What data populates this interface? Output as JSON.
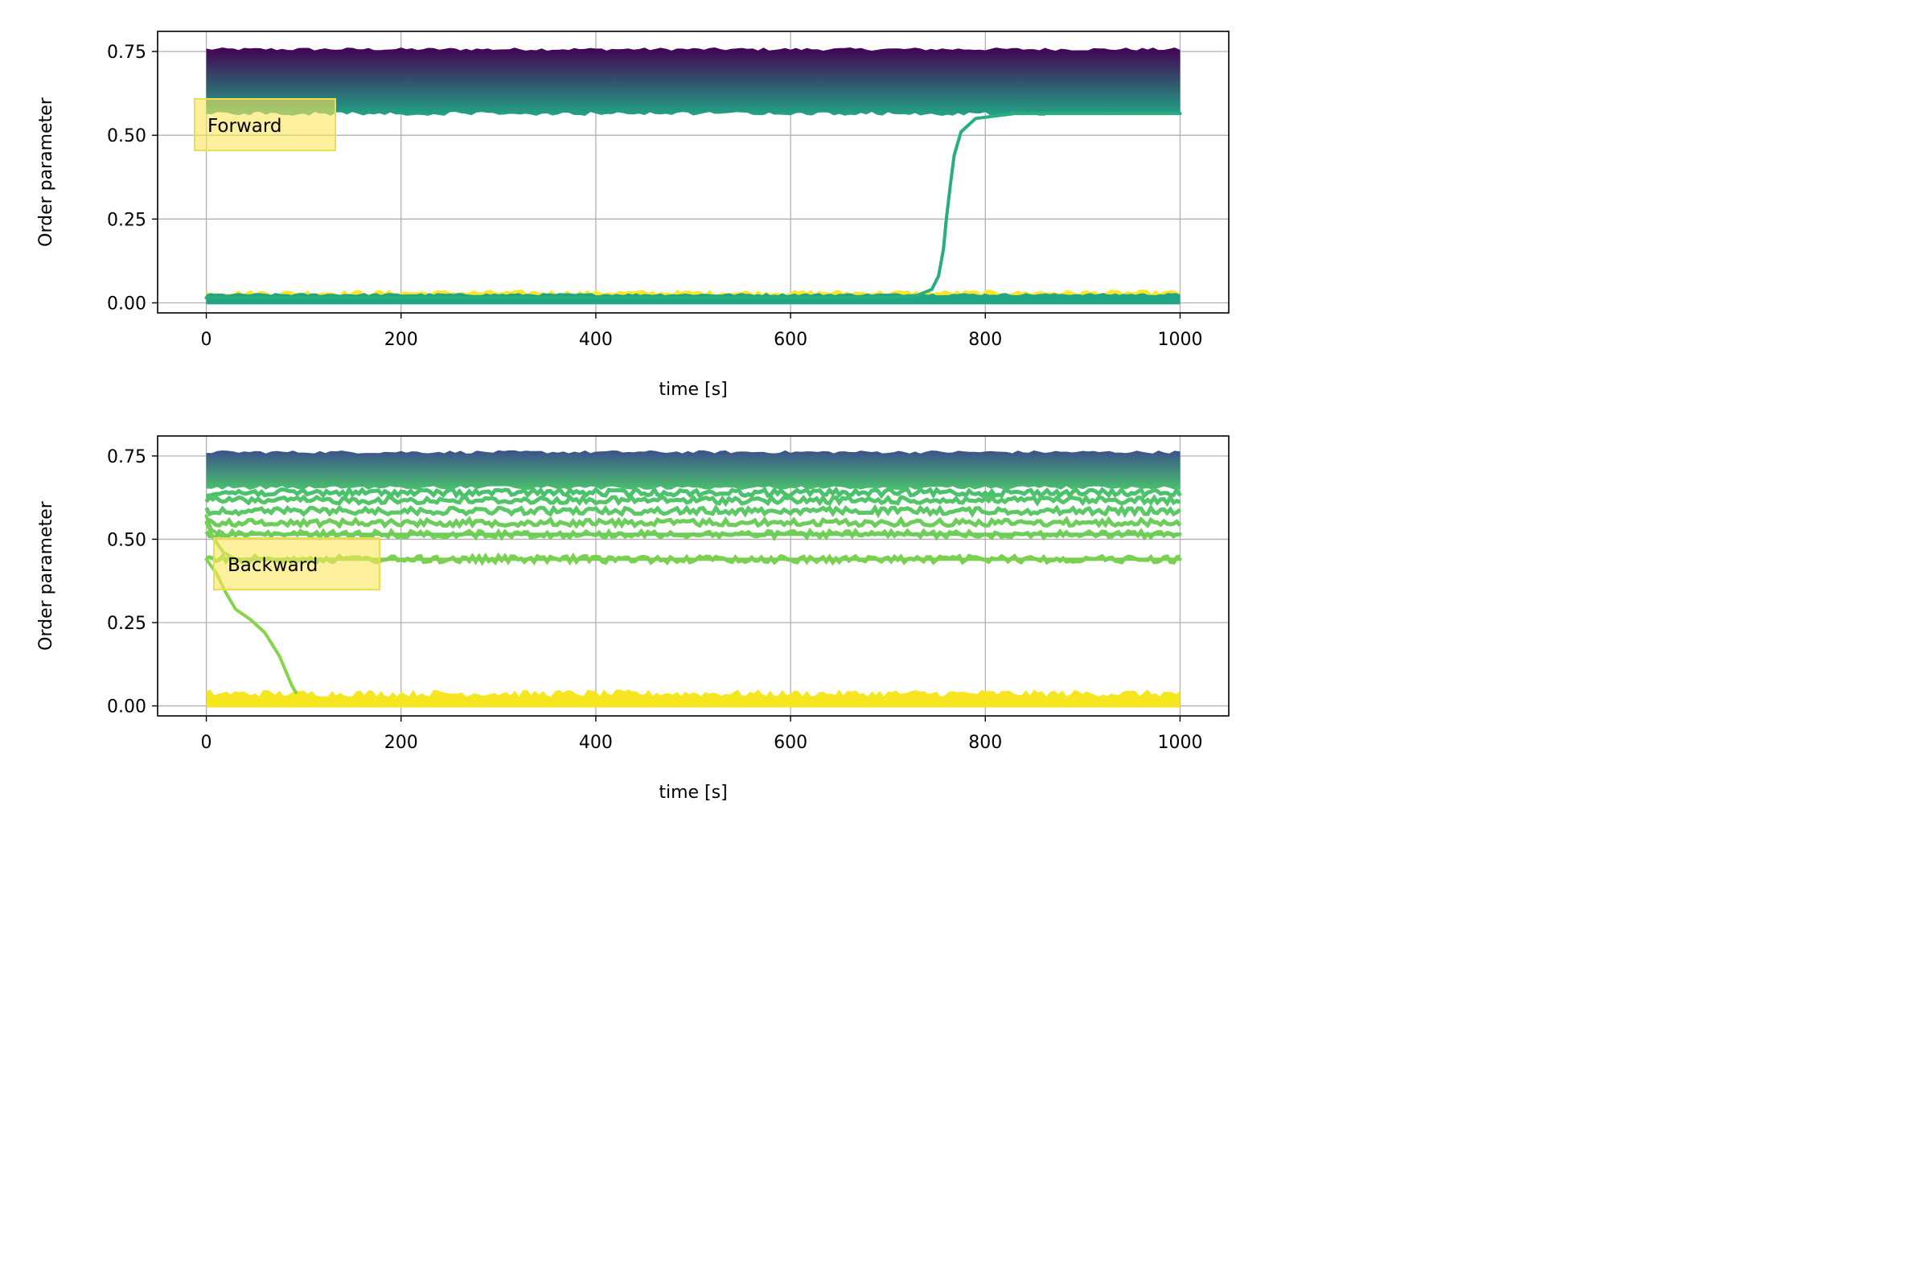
{
  "chart_data": [
    {
      "type": "line",
      "annotation": "Forward",
      "xlabel": "time [s]",
      "ylabel": "Order parameter",
      "xlim": [
        -50,
        1050
      ],
      "ylim": [
        -0.03,
        0.81
      ],
      "xticks": [
        0,
        200,
        400,
        600,
        800,
        1000
      ],
      "xtick_labels": [
        "0",
        "200",
        "400",
        "600",
        "800",
        "1000"
      ],
      "yticks": [
        0.0,
        0.25,
        0.5,
        0.75
      ],
      "ytick_labels": [
        "0.00",
        "0.25",
        "0.50",
        "0.75"
      ],
      "grid": true,
      "colormap": "viridis",
      "band_high": {
        "range": [
          0.57,
          0.75
        ],
        "time": [
          0,
          1000
        ],
        "color_top": "#440154",
        "color_bottom": "#21a585"
      },
      "band_low": {
        "range": [
          0.005,
          0.025
        ],
        "time": [
          0,
          1000
        ],
        "color": "#21a585",
        "noise_color": "#fde725"
      },
      "transition": {
        "color": "#27ad81",
        "points": [
          [
            0,
            0.015
          ],
          [
            600,
            0.015
          ],
          [
            700,
            0.016
          ],
          [
            730,
            0.022
          ],
          [
            745,
            0.04
          ],
          [
            752,
            0.08
          ],
          [
            757,
            0.16
          ],
          [
            760,
            0.25
          ],
          [
            764,
            0.35
          ],
          [
            768,
            0.44
          ],
          [
            775,
            0.51
          ],
          [
            790,
            0.55
          ],
          [
            830,
            0.565
          ],
          [
            1000,
            0.565
          ]
        ]
      }
    },
    {
      "type": "line",
      "annotation": "Backward",
      "xlabel": "time [s]",
      "ylabel": "Order parameter",
      "xlim": [
        -50,
        1050
      ],
      "ylim": [
        -0.03,
        0.81
      ],
      "xticks": [
        0,
        200,
        400,
        600,
        800,
        1000
      ],
      "xtick_labels": [
        "0",
        "200",
        "400",
        "600",
        "800",
        "1000"
      ],
      "yticks": [
        0.0,
        0.25,
        0.5,
        0.75
      ],
      "ytick_labels": [
        "0.00",
        "0.25",
        "0.50",
        "0.75"
      ],
      "grid": true,
      "colormap": "viridis",
      "band_high": {
        "range": [
          0.66,
          0.755
        ],
        "time": [
          0,
          1000
        ],
        "color_top": "#3b528b",
        "color_bottom": "#4ac16d"
      },
      "stable_lines": [
        {
          "value": 0.64,
          "color": "#4ac16d"
        },
        {
          "value": 0.617,
          "color": "#52c569"
        },
        {
          "value": 0.585,
          "color": "#5ac864"
        },
        {
          "value": 0.55,
          "color": "#6ccd5a"
        },
        {
          "value": 0.515,
          "color": "#73d055"
        },
        {
          "value": 0.44,
          "color": "#7ad151"
        }
      ],
      "decay_curve": {
        "color": "#86d549",
        "points": [
          [
            0,
            0.44
          ],
          [
            10,
            0.4
          ],
          [
            20,
            0.34
          ],
          [
            30,
            0.29
          ],
          [
            45,
            0.26
          ],
          [
            60,
            0.22
          ],
          [
            75,
            0.15
          ],
          [
            88,
            0.06
          ],
          [
            92,
            0.04
          ]
        ]
      },
      "merge_curves": [
        {
          "color": "#6ccd5a",
          "points": [
            [
              0,
              0.57
            ],
            [
              5,
              0.53
            ],
            [
              15,
              0.51
            ],
            [
              30,
              0.515
            ],
            [
              1000,
              0.515
            ]
          ]
        },
        {
          "color": "#7ad151",
          "points": [
            [
              0,
              0.55
            ],
            [
              8,
              0.5
            ],
            [
              18,
              0.46
            ],
            [
              30,
              0.44
            ],
            [
              1000,
              0.44
            ]
          ]
        }
      ],
      "band_low": {
        "range": [
          0.005,
          0.03
        ],
        "time": [
          0,
          1000
        ],
        "color": "#f6e620"
      }
    }
  ]
}
